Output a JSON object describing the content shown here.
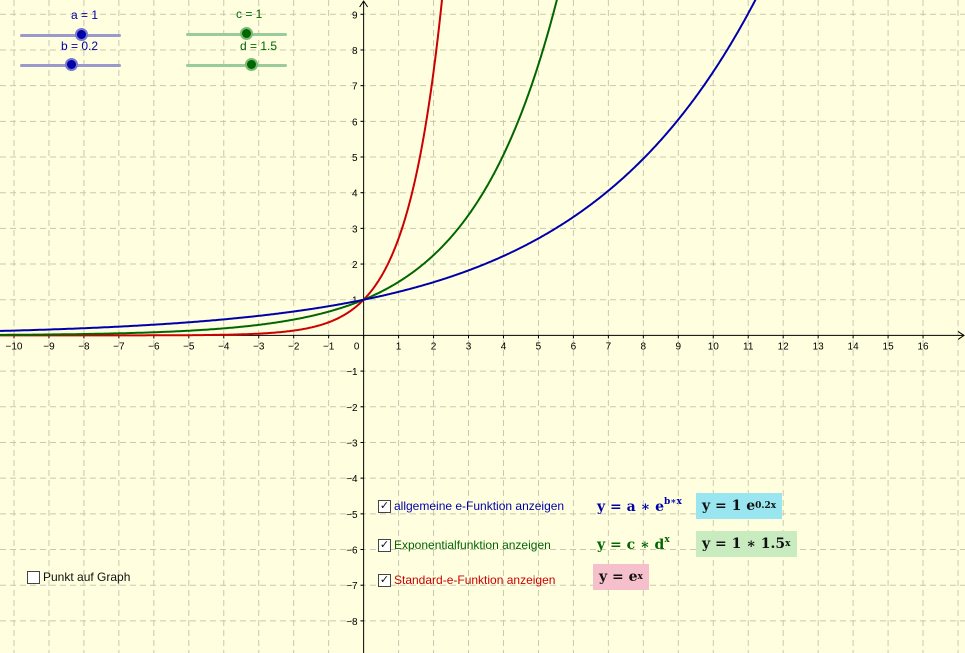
{
  "colors": {
    "background": "#ffffe0",
    "grid": "#c8c8b0",
    "axis": "#000000",
    "red": "#cc0000",
    "green": "#006600",
    "blue": "#0000aa",
    "box_blue": "#99e6f0",
    "box_green": "#c8ecc0",
    "box_pink": "#f5c0cc"
  },
  "sliders": {
    "a": {
      "label": "a = 1",
      "value": 1,
      "color": "blue",
      "fraction": 0.6
    },
    "b": {
      "label": "b = 0.2",
      "value": 0.2,
      "color": "blue",
      "fraction": 0.52
    },
    "c": {
      "label": "c = 1",
      "value": 1,
      "color": "green",
      "fraction": 0.6
    },
    "d": {
      "label": "d = 1.5",
      "value": 1.5,
      "color": "green",
      "fraction": 0.64
    }
  },
  "checkboxes": {
    "point_on_graph": {
      "label": "Punkt auf Graph",
      "checked": false
    },
    "general": {
      "label": "allgemeine e-Funktion anzeigen",
      "checked": true
    },
    "exponential": {
      "label": "Exponentialfunktion anzeigen",
      "checked": true
    },
    "standard": {
      "label": "Standard-e-Funktion anzeigen",
      "checked": true
    }
  },
  "formulas": {
    "general": {
      "lhs": "y = a ∗ e",
      "exp": "b∗x"
    },
    "general_value": {
      "lhs": "y = 1 e",
      "exp": "0.2x"
    },
    "exponential": {
      "lhs": "y = c ∗ d",
      "exp": "x"
    },
    "exponential_value": {
      "lhs": "y = 1 ∗ 1.5",
      "exp": "x"
    },
    "standard": {
      "lhs": "y = e",
      "exp": "x"
    }
  },
  "chart_data": {
    "type": "line",
    "xlim": [
      -10.4,
      17.2
    ],
    "ylim": [
      -8.9,
      9.4
    ],
    "grid": true,
    "x_ticks": [
      -10,
      -9,
      -8,
      -7,
      -6,
      -5,
      -4,
      -3,
      -2,
      -1,
      0,
      1,
      2,
      3,
      4,
      5,
      6,
      7,
      8,
      9,
      10,
      11,
      12,
      13,
      14,
      15,
      16
    ],
    "y_ticks": [
      -8,
      -7,
      -6,
      -5,
      -4,
      -3,
      -2,
      -1,
      1,
      2,
      3,
      4,
      5,
      6,
      7,
      8,
      9
    ],
    "series": [
      {
        "function": "e^x",
        "color": "red"
      },
      {
        "function": "1*1.5^x",
        "color": "green"
      },
      {
        "function": "1*e^(0.2x)",
        "color": "blue"
      }
    ]
  }
}
